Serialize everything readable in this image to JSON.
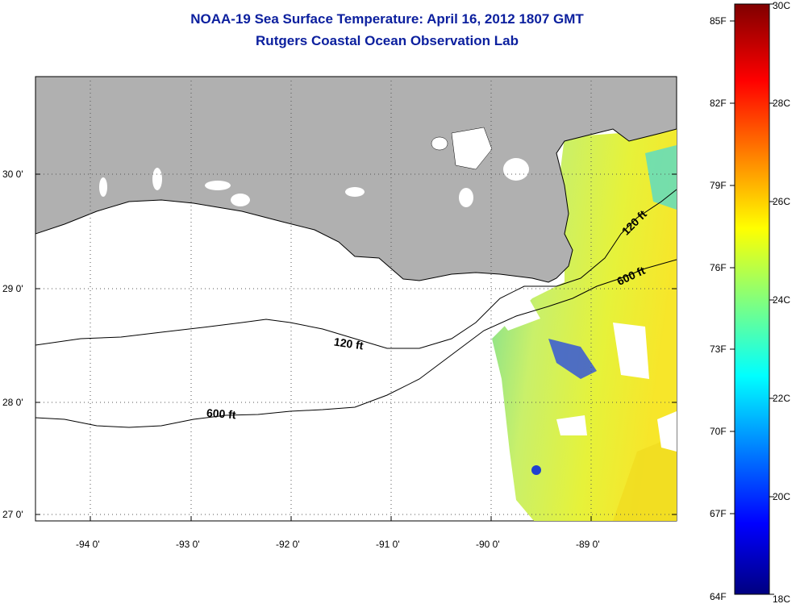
{
  "title": {
    "line1": "NOAA-19 Sea Surface Temperature:  April 16, 2012 1807 GMT",
    "line2": "Rutgers Coastal Ocean Observation Lab"
  },
  "map": {
    "lat_labels": [
      "30 0'",
      "29 0'",
      "28 0'",
      "27 0'"
    ],
    "lon_labels": [
      "-94 0'",
      "-93 0'",
      "-92 0'",
      "-91 0'",
      "-90 0'",
      "-89 0'"
    ],
    "contour_labels": [
      "120 ft",
      "120 ft",
      "600 ft",
      "600 ft"
    ],
    "colors": {
      "land": "#b0b0b0",
      "cloud": "#ffffff",
      "coast": "#000000"
    }
  },
  "colorbar": {
    "fahrenheit_labels": [
      "85F",
      "82F",
      "79F",
      "76F",
      "73F",
      "70F",
      "67F",
      "64F"
    ],
    "celsius_labels": [
      "30C",
      "28C",
      "26C",
      "24C",
      "22C",
      "20C",
      "18C"
    ],
    "colors": [
      "#000080",
      "#0000ff",
      "#00ffff",
      "#ffff00",
      "#ff0000",
      "#800000"
    ]
  }
}
